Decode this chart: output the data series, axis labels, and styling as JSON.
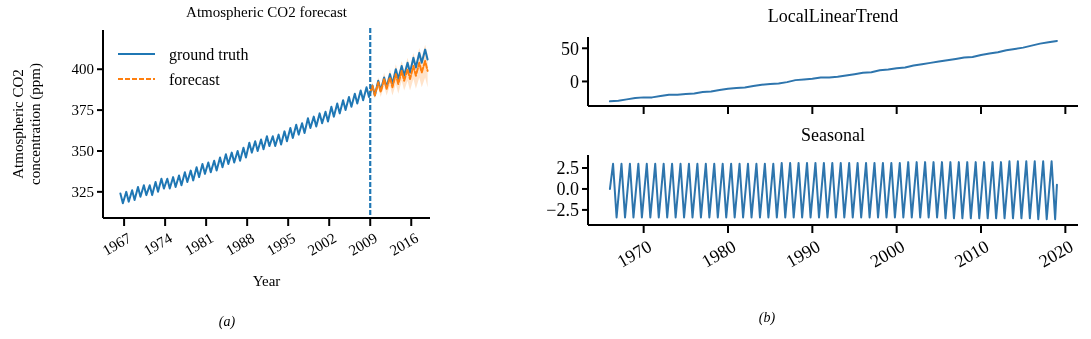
{
  "chart_data": [
    {
      "type": "line",
      "title": "Atmospheric CO2 forecast",
      "xlabel": "Year",
      "ylabel": "Atmospheric CO2\nconcentration (ppm)",
      "xlim": [
        1963.4,
        2019.2
      ],
      "ylim": [
        309,
        424
      ],
      "xticks": [
        1967,
        1974,
        1981,
        1988,
        1995,
        2002,
        2009,
        2016
      ],
      "yticks": [
        325,
        350,
        375,
        400
      ],
      "legend": "top left",
      "annotations": [
        "(a)"
      ],
      "ref_lines": [
        {
          "axis": "x",
          "value": 2009,
          "color": "#1f77b4",
          "line_style": "dashed"
        }
      ],
      "series": [
        {
          "name": "ground truth",
          "color": "#1f77b4",
          "line_style": "solid",
          "x": [
            1966.37,
            1966.79,
            1967.37,
            1967.79,
            1968.37,
            1968.79,
            1969.37,
            1969.79,
            1970.37,
            1970.79,
            1971.37,
            1971.79,
            1972.37,
            1972.79,
            1973.37,
            1973.79,
            1974.37,
            1974.79,
            1975.37,
            1975.79,
            1976.37,
            1976.79,
            1977.37,
            1977.79,
            1978.37,
            1978.79,
            1979.37,
            1979.79,
            1980.37,
            1980.79,
            1981.37,
            1981.79,
            1982.37,
            1982.79,
            1983.37,
            1983.79,
            1984.37,
            1984.79,
            1985.37,
            1985.79,
            1986.37,
            1986.79,
            1987.37,
            1987.79,
            1988.37,
            1988.79,
            1989.37,
            1989.79,
            1990.37,
            1990.79,
            1991.37,
            1991.79,
            1992.37,
            1992.79,
            1993.37,
            1993.79,
            1994.37,
            1994.79,
            1995.37,
            1995.79,
            1996.37,
            1996.79,
            1997.37,
            1997.79,
            1998.37,
            1998.79,
            1999.37,
            1999.79,
            2000.37,
            2000.79,
            2001.37,
            2001.79,
            2002.37,
            2002.79,
            2003.37,
            2003.79,
            2004.37,
            2004.79,
            2005.37,
            2005.79,
            2006.37,
            2006.79,
            2007.37,
            2007.79,
            2008.37,
            2008.79,
            2009.37,
            2009.79,
            2010.37,
            2010.79,
            2011.37,
            2011.79,
            2012.37,
            2012.79,
            2013.37,
            2013.79,
            2014.37,
            2014.79,
            2015.37,
            2015.79,
            2016.37,
            2016.79,
            2017.37,
            2017.79,
            2018.37,
            2018.79
          ],
          "values": [
            324,
            318,
            325,
            319,
            326,
            320,
            328,
            322,
            329,
            323,
            329,
            323,
            331,
            325,
            333,
            327,
            333,
            327,
            334,
            328,
            335,
            329,
            337,
            331,
            338,
            332,
            340,
            334,
            342,
            336,
            343,
            337,
            344,
            338,
            346,
            340,
            348,
            342,
            349,
            343,
            350,
            344,
            352,
            346,
            355,
            349,
            356,
            350,
            357,
            351,
            359,
            353,
            359,
            353,
            360,
            354,
            362,
            356,
            364,
            358,
            366,
            360,
            367,
            361,
            370,
            364,
            371,
            365,
            373,
            367,
            374,
            368,
            377,
            371,
            379,
            373,
            381,
            375,
            383,
            377,
            385,
            379,
            387,
            381,
            389,
            383,
            390,
            384,
            393,
            387,
            395,
            389,
            397,
            391,
            400,
            394,
            402,
            396,
            404,
            398,
            407,
            401,
            410,
            404,
            412,
            406
          ]
        },
        {
          "name": "forecast",
          "color": "#ff7f0e",
          "line_style": "dashed",
          "x": [
            2009.0,
            2009.37,
            2009.79,
            2010.37,
            2010.79,
            2011.37,
            2011.79,
            2012.37,
            2012.79,
            2013.37,
            2013.79,
            2014.37,
            2014.79,
            2015.37,
            2015.79,
            2016.37,
            2016.79,
            2017.37,
            2017.79,
            2018.37,
            2018.79
          ],
          "values": [
            386,
            390,
            384,
            392,
            386,
            394,
            388,
            395,
            389,
            397,
            391,
            399,
            393,
            400,
            394,
            402,
            396,
            404,
            398,
            405,
            399
          ],
          "lower": [
            385,
            388,
            382,
            389,
            383,
            390,
            384,
            390,
            384,
            391,
            385,
            393,
            387,
            393,
            387,
            394,
            388,
            395,
            389,
            395,
            389
          ],
          "upper": [
            387,
            392,
            386,
            395,
            389,
            398,
            392,
            400,
            394,
            403,
            397,
            405,
            399,
            407,
            401,
            410,
            404,
            413,
            407,
            415,
            409
          ]
        }
      ]
    },
    {
      "type": "line",
      "title": "LocalLinearTrend",
      "xlim": [
        1963.4,
        2021.5
      ],
      "ylim": [
        -37,
        67
      ],
      "xticks": [
        1970,
        1980,
        1990,
        2000,
        2010,
        2020
      ],
      "yticks": [
        0,
        50
      ],
      "tick_labels": "y",
      "series": [
        {
          "color": "#2e75ad",
          "x": [
            1966,
            1967,
            1968,
            1969,
            1970,
            1971,
            1972,
            1973,
            1974,
            1975,
            1976,
            1977,
            1978,
            1979,
            1980,
            1981,
            1982,
            1983,
            1984,
            1985,
            1986,
            1987,
            1988,
            1989,
            1990,
            1991,
            1992,
            1993,
            1994,
            1995,
            1996,
            1997,
            1998,
            1999,
            2000,
            2001,
            2002,
            2003,
            2004,
            2005,
            2006,
            2007,
            2008,
            2009,
            2010,
            2011,
            2012,
            2013,
            2014,
            2015,
            2016,
            2017,
            2018,
            2019
          ],
          "values": [
            -30,
            -29,
            -27,
            -25,
            -24,
            -24,
            -22,
            -20,
            -20,
            -19,
            -18,
            -16,
            -15,
            -13,
            -11,
            -10,
            -9,
            -7,
            -5,
            -4,
            -3,
            -1,
            2,
            3,
            4,
            6,
            6,
            7,
            9,
            11,
            13,
            14,
            17,
            18,
            20,
            21,
            24,
            26,
            28,
            30,
            32,
            34,
            36,
            37,
            40,
            42,
            44,
            47,
            49,
            51,
            54,
            57,
            59,
            61
          ]
        }
      ]
    },
    {
      "type": "line",
      "title": "Seasonal",
      "xlim": [
        1963.4,
        2021.5
      ],
      "ylim": [
        -4.3,
        4.05
      ],
      "xticks": [
        1970,
        1980,
        1990,
        2000,
        2010,
        2020
      ],
      "yticks": [
        {
          "value": -2.5,
          "label": "−2.5"
        },
        {
          "value": 0,
          "label": "0.0"
        },
        {
          "value": 2.5,
          "label": "2.5"
        }
      ],
      "annotations": [
        "(b)"
      ],
      "series": [
        {
          "color": "#2e75ad",
          "x": [
            1966.0,
            1966.37,
            1966.79,
            1967.37,
            1967.79,
            1968.37,
            1968.79,
            1969.37,
            1969.79,
            1970.37,
            1970.79,
            1971.37,
            1971.79,
            1972.37,
            1972.79,
            1973.37,
            1973.79,
            1974.37,
            1974.79,
            1975.37,
            1975.79,
            1976.37,
            1976.79,
            1977.37,
            1977.79,
            1978.37,
            1978.79,
            1979.37,
            1979.79,
            1980.37,
            1980.79,
            1981.37,
            1981.79,
            1982.37,
            1982.79,
            1983.37,
            1983.79,
            1984.37,
            1984.79,
            1985.37,
            1985.79,
            1986.37,
            1986.79,
            1987.37,
            1987.79,
            1988.37,
            1988.79,
            1989.37,
            1989.79,
            1990.37,
            1990.79,
            1991.37,
            1991.79,
            1992.37,
            1992.79,
            1993.37,
            1993.79,
            1994.37,
            1994.79,
            1995.37,
            1995.79,
            1996.37,
            1996.79,
            1997.37,
            1997.79,
            1998.37,
            1998.79,
            1999.37,
            1999.79,
            2000.37,
            2000.79,
            2001.37,
            2001.79,
            2002.37,
            2002.79,
            2003.37,
            2003.79,
            2004.37,
            2004.79,
            2005.37,
            2005.79,
            2006.37,
            2006.79,
            2007.37,
            2007.79,
            2008.37,
            2008.79,
            2009.37,
            2009.79,
            2010.37,
            2010.79,
            2011.37,
            2011.79,
            2012.37,
            2012.79,
            2013.37,
            2013.79,
            2014.37,
            2014.79,
            2015.37,
            2015.79,
            2016.37,
            2016.79,
            2017.37,
            2017.79,
            2018.37,
            2018.79,
            2019.0
          ],
          "values": [
            0,
            3.0,
            -3.4,
            3.0,
            -3.4,
            3.0,
            -3.4,
            3.0,
            -3.4,
            3.0,
            -3.4,
            3.0,
            -3.4,
            3.0,
            -3.4,
            3.0,
            -3.4,
            3.0,
            -3.4,
            3.0,
            -3.4,
            3.0,
            -3.4,
            3.0,
            -3.4,
            3.0,
            -3.4,
            3.0,
            -3.4,
            3.0,
            -3.4,
            3.0,
            -3.4,
            3.0,
            -3.4,
            3.0,
            -3.4,
            3.0,
            -3.4,
            3.0,
            -3.4,
            3.1,
            -3.4,
            3.1,
            -3.4,
            3.1,
            -3.4,
            3.1,
            -3.4,
            3.1,
            -3.4,
            3.1,
            -3.4,
            3.1,
            -3.4,
            3.1,
            -3.4,
            3.1,
            -3.4,
            3.1,
            -3.4,
            3.1,
            -3.4,
            3.1,
            -3.4,
            3.1,
            -3.4,
            3.1,
            -3.4,
            3.1,
            -3.4,
            3.2,
            -3.4,
            3.2,
            -3.4,
            3.2,
            -3.4,
            3.2,
            -3.4,
            3.2,
            -3.5,
            3.2,
            -3.5,
            3.2,
            -3.5,
            3.2,
            -3.5,
            3.2,
            -3.5,
            3.2,
            -3.5,
            3.2,
            -3.5,
            3.2,
            -3.5,
            3.3,
            -3.5,
            3.3,
            -3.5,
            3.3,
            -3.5,
            3.3,
            -3.6,
            3.3,
            -3.6,
            3.3,
            -3.6,
            0.5
          ]
        }
      ]
    }
  ]
}
